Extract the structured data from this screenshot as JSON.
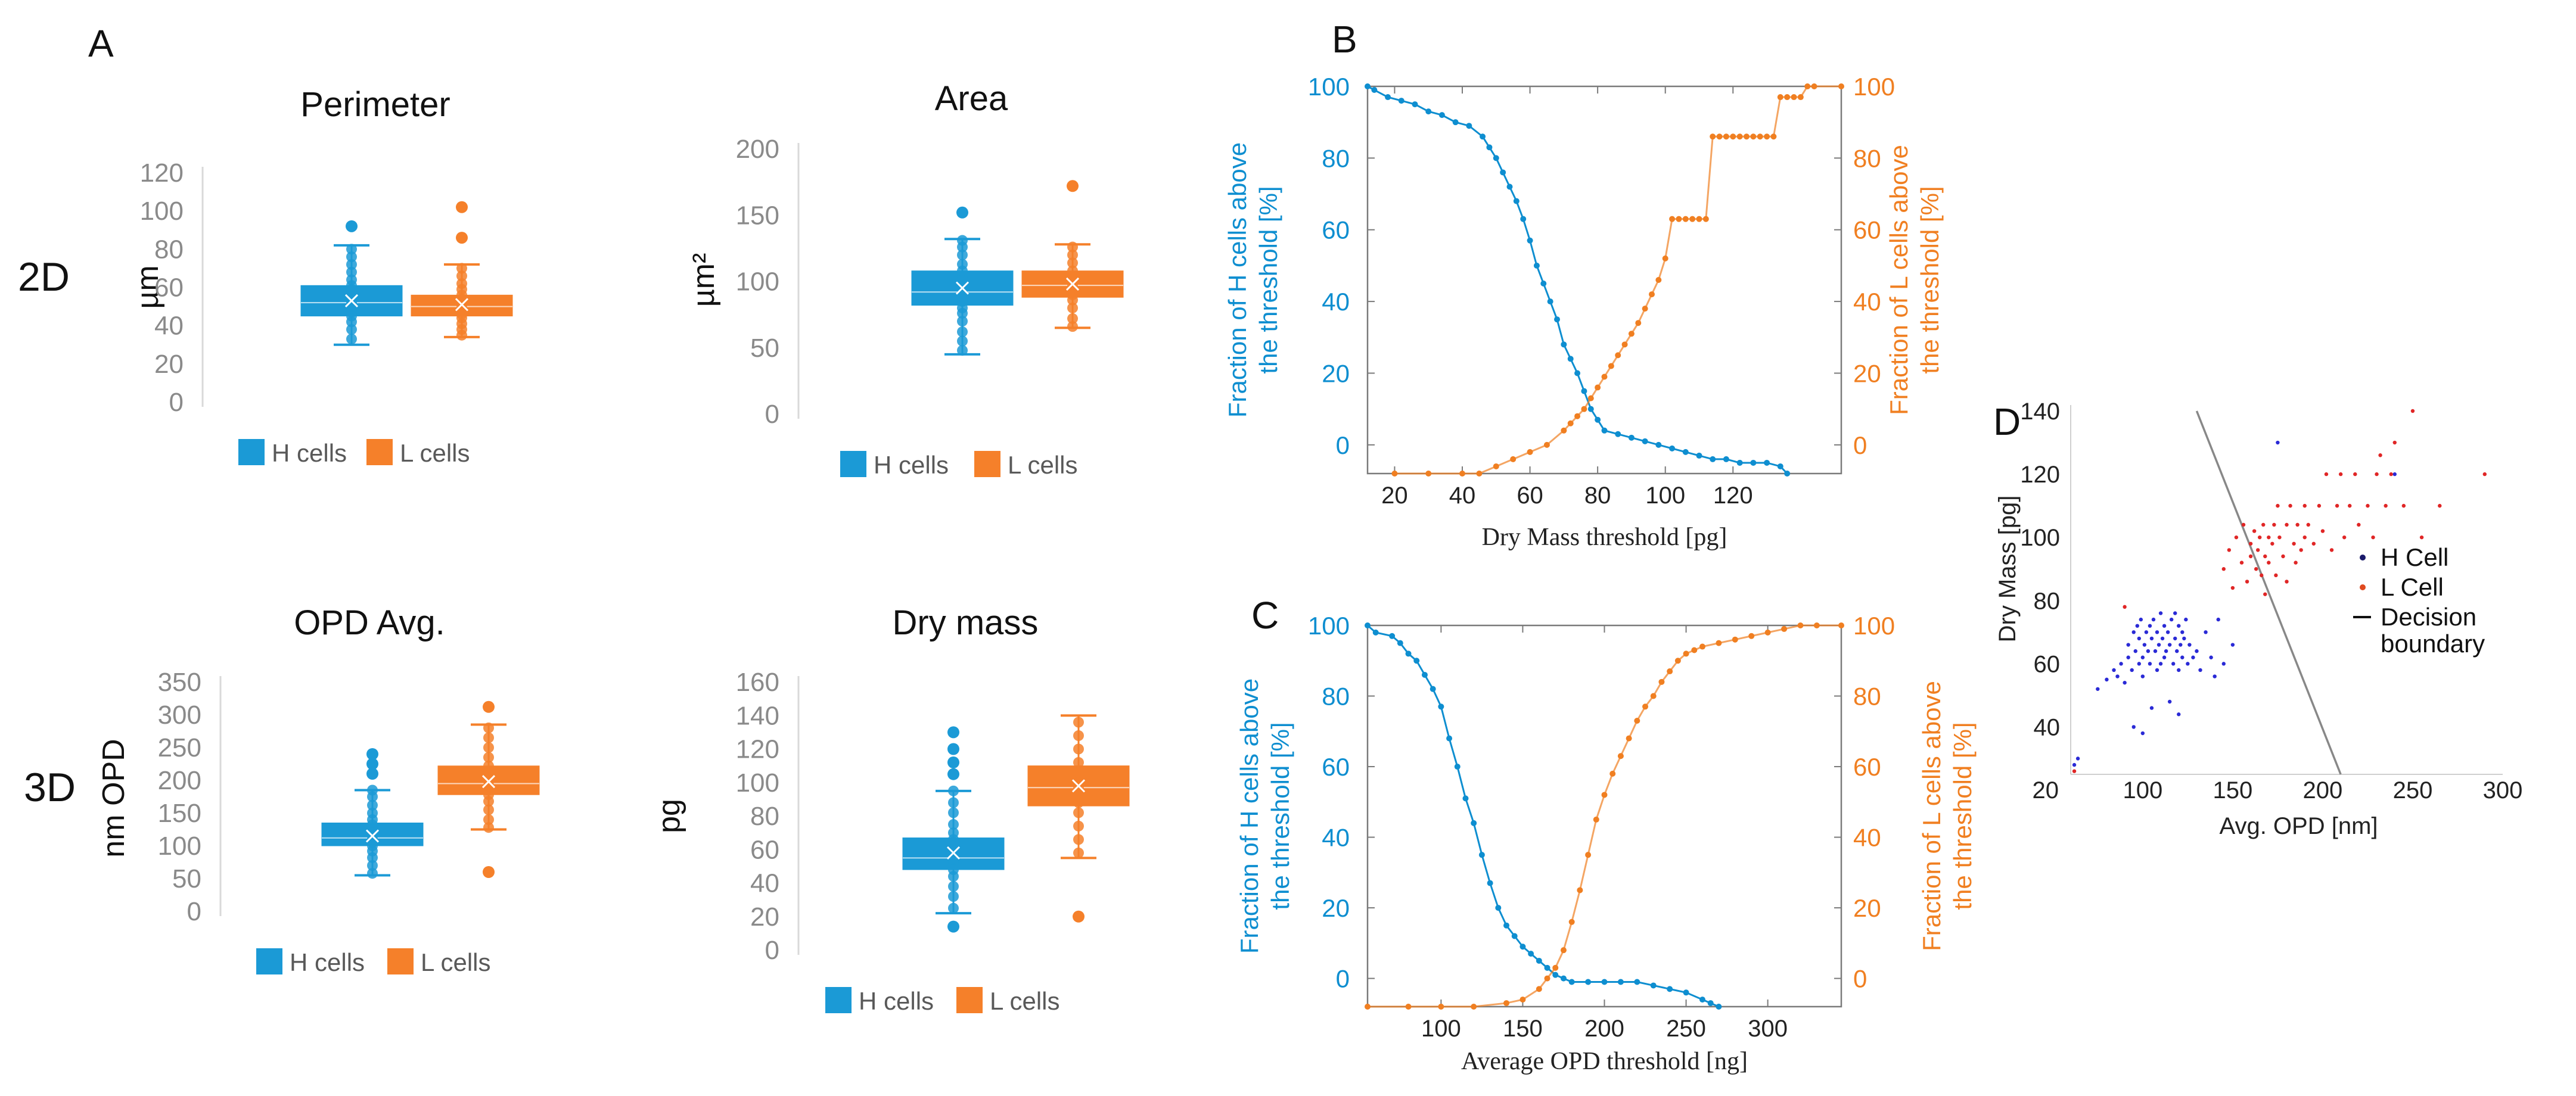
{
  "colors": {
    "h": "#1b9ad6",
    "l": "#f5802a",
    "h_dark": "#0e8ed0",
    "l_dark": "#f07f21",
    "scatter_h": "#2a2ad6",
    "scatter_l": "#e02626"
  },
  "row_labels": {
    "row1": "2D",
    "row2": "3D"
  },
  "panel_labels": {
    "a": "A",
    "b": "B",
    "c": "C",
    "d": "D"
  },
  "chart_data": [
    {
      "id": "perimeter",
      "type": "box",
      "title": "Perimeter",
      "ylabel": "µm",
      "ylim": [
        0,
        120
      ],
      "yticks": [
        0,
        20,
        40,
        60,
        80,
        100,
        120
      ],
      "legend": [
        "H cells",
        "L cells"
      ],
      "series": [
        {
          "name": "H cells",
          "min": 30,
          "q1": 45,
          "median": 52,
          "mean": 53,
          "q3": 61,
          "max": 82,
          "outliers": [
            92
          ],
          "points": [
            33,
            38,
            42,
            45,
            47,
            49,
            50,
            52,
            53,
            55,
            57,
            59,
            61,
            64,
            68,
            72,
            76,
            80
          ]
        },
        {
          "name": "L cells",
          "min": 34,
          "q1": 45,
          "median": 50,
          "mean": 51,
          "q3": 56,
          "max": 72,
          "outliers": [
            86,
            102
          ],
          "points": [
            35,
            38,
            41,
            44,
            46,
            48,
            50,
            52,
            54,
            56,
            59,
            62,
            66,
            70
          ]
        }
      ]
    },
    {
      "id": "area",
      "type": "box",
      "title": "Area",
      "ylabel": "µm²",
      "ylim": [
        0,
        200
      ],
      "yticks": [
        0,
        50,
        100,
        150,
        200
      ],
      "legend": [
        "H cells",
        "L cells"
      ],
      "series": [
        {
          "name": "H cells",
          "min": 45,
          "q1": 82,
          "median": 92,
          "mean": 95,
          "q3": 108,
          "max": 132,
          "outliers": [
            152
          ],
          "points": [
            48,
            55,
            62,
            70,
            76,
            80,
            85,
            88,
            91,
            94,
            97,
            100,
            104,
            108,
            113,
            120,
            126,
            131
          ]
        },
        {
          "name": "L cells",
          "min": 65,
          "q1": 88,
          "median": 97,
          "mean": 98,
          "q3": 108,
          "max": 128,
          "outliers": [
            172
          ],
          "points": [
            66,
            72,
            80,
            86,
            90,
            94,
            97,
            100,
            104,
            108,
            114,
            120,
            126
          ]
        }
      ]
    },
    {
      "id": "opd_avg",
      "type": "box",
      "title": "OPD Avg.",
      "ylabel": "nm OPD",
      "ylim": [
        0,
        350
      ],
      "yticks": [
        0,
        50,
        100,
        150,
        200,
        250,
        300,
        350
      ],
      "legend": [
        "H cells",
        "L cells"
      ],
      "series": [
        {
          "name": "H cells",
          "min": 55,
          "q1": 100,
          "median": 112,
          "mean": 115,
          "q3": 135,
          "max": 185,
          "outliers": [
            210,
            225,
            240
          ],
          "points": [
            58,
            70,
            82,
            92,
            100,
            105,
            110,
            115,
            120,
            126,
            132,
            140,
            150,
            162,
            175,
            185
          ]
        },
        {
          "name": "L cells",
          "min": 125,
          "q1": 178,
          "median": 195,
          "mean": 198,
          "q3": 222,
          "max": 285,
          "outliers": [
            60,
            312
          ],
          "points": [
            128,
            140,
            155,
            168,
            178,
            185,
            192,
            198,
            205,
            212,
            222,
            235,
            250,
            265,
            280
          ]
        }
      ]
    },
    {
      "id": "dry_mass",
      "type": "box",
      "title": "Dry mass",
      "ylabel": "pg",
      "ylim": [
        0,
        160
      ],
      "yticks": [
        0,
        20,
        40,
        60,
        80,
        100,
        120,
        140,
        160
      ],
      "legend": [
        "H cells",
        "L cells"
      ],
      "series": [
        {
          "name": "H cells",
          "min": 22,
          "q1": 48,
          "median": 55,
          "mean": 58,
          "q3": 67,
          "max": 95,
          "outliers": [
            14,
            105,
            112,
            120,
            130
          ],
          "points": [
            25,
            32,
            38,
            44,
            48,
            52,
            55,
            58,
            62,
            66,
            70,
            75,
            82,
            88,
            95
          ]
        },
        {
          "name": "L cells",
          "min": 55,
          "q1": 86,
          "median": 97,
          "mean": 98,
          "q3": 110,
          "max": 140,
          "outliers": [
            20
          ],
          "points": [
            58,
            66,
            74,
            82,
            88,
            93,
            97,
            101,
            106,
            112,
            120,
            128,
            136
          ]
        }
      ]
    },
    {
      "id": "B",
      "type": "line",
      "xlabel": "Dry Mass threshold [pg]",
      "ylabel_left": "Fraction of H cells above the threshold [%]",
      "ylabel_right": "Fraction of L cells above the threshold [%]",
      "xlim": [
        12,
        152
      ],
      "xticks": [
        20,
        40,
        60,
        80,
        100,
        120
      ],
      "ylim": [
        -8,
        100
      ],
      "yticks": [
        0,
        20,
        40,
        60,
        80,
        100
      ],
      "series": [
        {
          "name": "H cells",
          "x": [
            12,
            14,
            18,
            22,
            26,
            30,
            34,
            38,
            42,
            46,
            48,
            50,
            52,
            54,
            56,
            58,
            60,
            62,
            64,
            66,
            68,
            70,
            72,
            74,
            76,
            78,
            80,
            82,
            86,
            90,
            94,
            98,
            102,
            106,
            110,
            114,
            118,
            122,
            126,
            130,
            134,
            136
          ],
          "y": [
            100,
            99,
            97,
            96,
            95,
            93,
            92,
            90,
            89,
            86,
            83,
            80,
            76,
            72,
            68,
            63,
            57,
            50,
            45,
            40,
            35,
            28,
            24,
            20,
            15,
            10,
            7,
            4,
            3,
            2,
            1,
            0,
            -1,
            -2,
            -3,
            -4,
            -4,
            -5,
            -5,
            -5,
            -6,
            -8
          ]
        },
        {
          "name": "L cells",
          "x": [
            20,
            30,
            40,
            45,
            50,
            55,
            60,
            65,
            70,
            72,
            74,
            76,
            78,
            80,
            82,
            84,
            86,
            88,
            90,
            92,
            94,
            96,
            98,
            100,
            102,
            104,
            106,
            108,
            110,
            112,
            114,
            116,
            118,
            120,
            122,
            124,
            126,
            128,
            130,
            132,
            134,
            136,
            138,
            140,
            142,
            144,
            152
          ],
          "y": [
            -8,
            -8,
            -8,
            -8,
            -6,
            -4,
            -2,
            0,
            4,
            6,
            8,
            10,
            13,
            16,
            19,
            22,
            25,
            28,
            31,
            34,
            38,
            42,
            46,
            52,
            63,
            63,
            63,
            63,
            63,
            63,
            86,
            86,
            86,
            86,
            86,
            86,
            86,
            86,
            86,
            86,
            97,
            97,
            97,
            97,
            100,
            100,
            100
          ]
        }
      ]
    },
    {
      "id": "C",
      "type": "line",
      "xlabel": "Average OPD threshold [ng]",
      "ylabel_left": "Fraction of H cells above the threshold [%]",
      "ylabel_right": "Fraction of L cells above the threshold [%]",
      "xlim": [
        55,
        345
      ],
      "xticks": [
        100,
        150,
        200,
        250,
        300
      ],
      "ylim": [
        -8,
        100
      ],
      "yticks": [
        0,
        20,
        40,
        60,
        80,
        100
      ],
      "series": [
        {
          "name": "H cells",
          "x": [
            55,
            60,
            70,
            75,
            80,
            85,
            90,
            95,
            100,
            105,
            110,
            115,
            120,
            125,
            130,
            135,
            140,
            145,
            150,
            155,
            160,
            165,
            170,
            175,
            180,
            190,
            200,
            210,
            220,
            230,
            240,
            250,
            260,
            265,
            270
          ],
          "y": [
            100,
            98,
            97,
            95,
            92,
            90,
            86,
            82,
            77,
            68,
            60,
            51,
            44,
            35,
            27,
            20,
            15,
            12,
            9,
            7,
            5,
            3,
            1,
            0,
            -1,
            -1,
            -1,
            -1,
            -1,
            -2,
            -3,
            -4,
            -6,
            -7,
            -8
          ]
        },
        {
          "name": "L cells",
          "x": [
            55,
            80,
            100,
            120,
            140,
            150,
            160,
            165,
            170,
            175,
            180,
            185,
            190,
            195,
            200,
            205,
            210,
            215,
            220,
            225,
            230,
            235,
            240,
            245,
            250,
            255,
            260,
            270,
            280,
            290,
            300,
            310,
            320,
            330,
            345
          ],
          "y": [
            -8,
            -8,
            -8,
            -8,
            -7,
            -6,
            -3,
            0,
            3,
            8,
            16,
            25,
            35,
            45,
            52,
            58,
            63,
            68,
            73,
            77,
            80,
            84,
            87,
            90,
            92,
            93,
            94,
            95,
            96,
            97,
            98,
            99,
            100,
            100,
            100
          ]
        }
      ]
    },
    {
      "id": "D",
      "type": "scatter",
      "xlabel": "Avg. OPD [nm]",
      "ylabel": "Dry Mass [pg]",
      "xlim": [
        60,
        300
      ],
      "xticks": [
        100,
        150,
        200,
        250,
        300
      ],
      "xtick_first": "20",
      "ylim": [
        25,
        140
      ],
      "yticks": [
        40,
        60,
        80,
        100,
        120,
        140
      ],
      "legend": [
        "H Cell",
        "L Cell",
        "Decision boundary"
      ],
      "decision_boundary": [
        [
          130,
          140
        ],
        [
          210,
          25
        ]
      ],
      "series": [
        {
          "name": "H Cell",
          "x": [
            62,
            64,
            75,
            80,
            84,
            86,
            88,
            90,
            92,
            92,
            94,
            95,
            96,
            97,
            98,
            98,
            99,
            100,
            100,
            101,
            102,
            103,
            104,
            104,
            105,
            106,
            107,
            108,
            108,
            109,
            110,
            110,
            111,
            112,
            112,
            113,
            114,
            115,
            116,
            117,
            118,
            118,
            119,
            120,
            120,
            121,
            122,
            122,
            123,
            124,
            125,
            126,
            128,
            130,
            132,
            135,
            138,
            140,
            142,
            145,
            150,
            95,
            100,
            105,
            115,
            120,
            175,
            240
          ],
          "y": [
            28,
            30,
            52,
            55,
            58,
            56,
            60,
            54,
            62,
            66,
            58,
            70,
            64,
            72,
            60,
            68,
            74,
            56,
            62,
            66,
            70,
            64,
            60,
            72,
            68,
            74,
            64,
            58,
            70,
            66,
            60,
            76,
            68,
            62,
            72,
            64,
            70,
            66,
            74,
            60,
            68,
            76,
            64,
            58,
            72,
            66,
            62,
            70,
            68,
            74,
            60,
            66,
            62,
            64,
            58,
            70,
            62,
            56,
            74,
            60,
            66,
            40,
            38,
            46,
            48,
            44,
            130,
            120
          ]
        },
        {
          "name": "L Cell",
          "x": [
            62,
            90,
            145,
            148,
            150,
            152,
            155,
            156,
            158,
            160,
            160,
            162,
            163,
            164,
            165,
            166,
            167,
            168,
            168,
            170,
            170,
            172,
            173,
            174,
            175,
            176,
            178,
            180,
            180,
            182,
            184,
            185,
            186,
            188,
            190,
            190,
            192,
            195,
            198,
            200,
            202,
            205,
            208,
            210,
            212,
            215,
            218,
            220,
            225,
            228,
            230,
            232,
            235,
            238,
            240,
            245,
            250,
            255,
            265,
            290
          ],
          "y": [
            26,
            78,
            90,
            96,
            84,
            100,
            92,
            104,
            86,
            98,
            94,
            102,
            90,
            96,
            100,
            88,
            104,
            94,
            82,
            100,
            92,
            98,
            104,
            88,
            110,
            100,
            94,
            104,
            86,
            110,
            98,
            92,
            104,
            96,
            110,
            100,
            104,
            98,
            110,
            102,
            120,
            96,
            110,
            120,
            100,
            110,
            120,
            104,
            110,
            100,
            120,
            126,
            110,
            120,
            130,
            110,
            140,
            100,
            110,
            120
          ]
        }
      ]
    }
  ]
}
